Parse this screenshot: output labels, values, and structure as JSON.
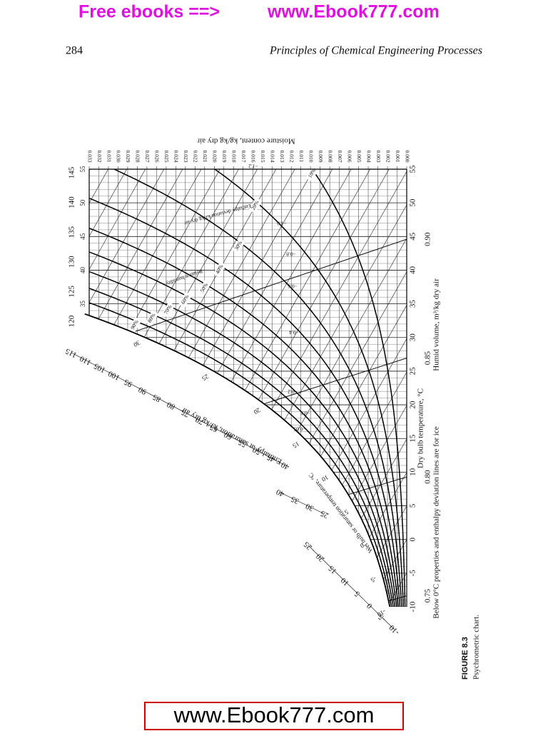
{
  "banner": {
    "text": "Free ebooks ==>",
    "url": "www.Ebook777.com"
  },
  "header": {
    "page_number": "284",
    "title": "Principles of Chemical Engineering Processes"
  },
  "figure": {
    "label": "FIGURE 8.3",
    "caption": "Psychrometric chart.",
    "note": "Below 0°C properties and enthalpy deviation lines are for ice",
    "chart": {
      "moisture_title": "Moisture content, kg/kg dry air",
      "moisture_ticks": [
        "0.000",
        "0.001",
        "0.002",
        "0.003",
        "0.004",
        "0.005",
        "0.006",
        "0.007",
        "0.008",
        "0.009",
        "0.010",
        "0.011",
        "0.012",
        "0.013",
        "0.014",
        "0.015",
        "0.016",
        "0.017",
        "0.018",
        "0.019",
        "0.020",
        "0.021",
        "0.022",
        "0.023",
        "0.024",
        "0.025",
        "0.026",
        "0.027",
        "0.028",
        "0.029",
        "0.030",
        "0.031",
        "0.032",
        "0.033"
      ],
      "dry_bulb_title": "Dry bulb temperature, °C",
      "dry_bulb_ticks": [
        -10,
        -5,
        0,
        5,
        10,
        15,
        20,
        25,
        30,
        35,
        40,
        45,
        50,
        55
      ],
      "volume_title": "Humid volume, m³/kg dry air",
      "volume_ticks": [
        "0.75",
        "0.80",
        "0.85",
        "0.90"
      ],
      "rh_title": "Relative humidity",
      "rh_labels": [
        "10%",
        "20%",
        "30%",
        "40%",
        "50%",
        "60%",
        "70%",
        "80%",
        "90%"
      ],
      "enthalpy_title": "Enthalpy at saturation, kJ/kg dry air",
      "enthalpy_scale": [
        [
          -10,
          -5,
          0,
          5,
          10,
          15,
          20,
          25
        ],
        [
          25,
          30,
          35,
          40
        ],
        [
          40,
          45,
          50,
          55,
          60,
          65,
          70,
          75,
          80,
          85,
          90,
          95,
          100,
          105,
          110,
          115
        ]
      ],
      "enthalpy_upper": [
        120,
        125,
        130,
        135,
        140,
        145
      ],
      "wet_bulb_title": "Wet bulb or saturation temperature, °C",
      "wet_bulb_ticks": [
        -10,
        -5,
        0,
        5,
        10,
        15,
        20,
        25,
        30
      ],
      "wet_bulb_upper": [
        35,
        40,
        45,
        50,
        55
      ],
      "deviation_title": "Enthalpy deviation kJ/kg dry air",
      "deviation_labels": [
        "−0.05",
        "−0.1",
        "−0.2",
        "−0.4",
        "−0.6",
        "−0.8",
        "−1.0",
        "−1.2"
      ]
    }
  },
  "footer": {
    "url": "www.Ebook777.com"
  }
}
